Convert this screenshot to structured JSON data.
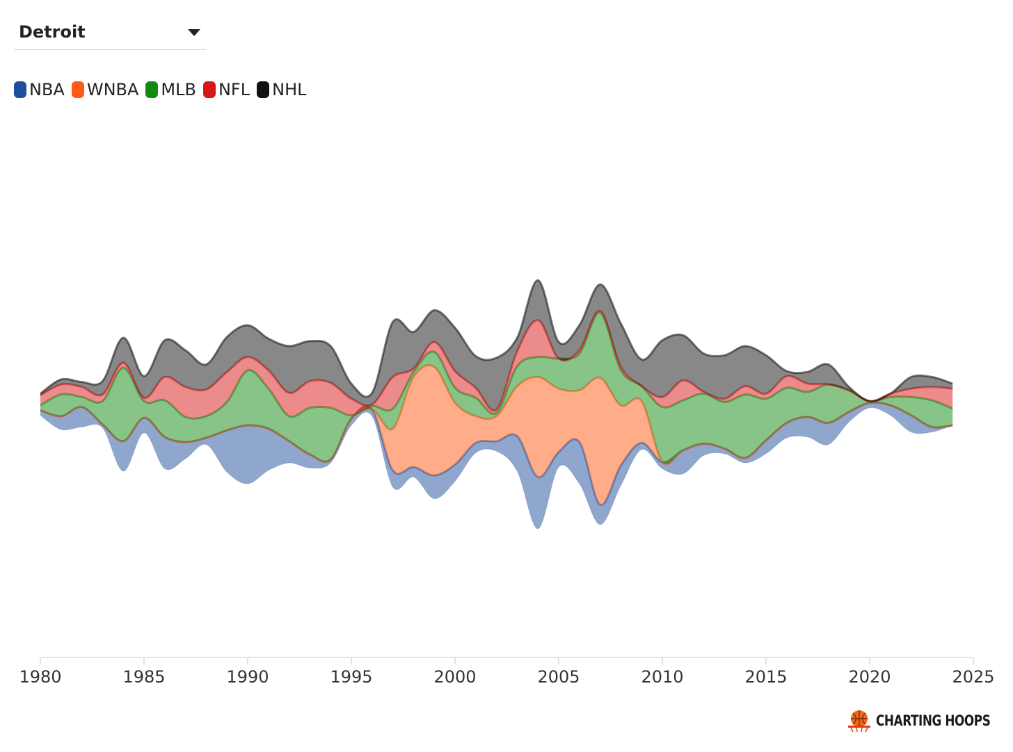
{
  "filter": {
    "selected_city": "Detroit"
  },
  "legend": [
    {
      "label": "NBA",
      "color": "#1f4e9c"
    },
    {
      "label": "WNBA",
      "color": "#ff5a14"
    },
    {
      "label": "MLB",
      "color": "#128a12"
    },
    {
      "label": "NFL",
      "color": "#d81818"
    },
    {
      "label": "NHL",
      "color": "#111111"
    }
  ],
  "brand": {
    "name": "CHARTING HOOPS"
  },
  "chart_data": {
    "type": "area",
    "subtype": "streamgraph",
    "x": [
      1980,
      1981,
      1982,
      1983,
      1984,
      1985,
      1986,
      1987,
      1988,
      1989,
      1990,
      1991,
      1992,
      1993,
      1994,
      1995,
      1996,
      1997,
      1998,
      1999,
      2000,
      2001,
      2002,
      2003,
      2004,
      2005,
      2006,
      2007,
      2008,
      2009,
      2010,
      2011,
      2012,
      2013,
      2014,
      2015,
      2016,
      2017,
      2018,
      2019,
      2020,
      2021,
      2022,
      2023,
      2024
    ],
    "x_ticks": [
      "1980",
      "1985",
      "1990",
      "1995",
      "2000",
      "2005",
      "2010",
      "2015",
      "2020",
      "2025"
    ],
    "xlim": [
      1980,
      2025
    ],
    "series": [
      {
        "name": "NBA",
        "color": "#1f4e9c",
        "values": [
          0.3,
          0.8,
          1.2,
          0.2,
          1.8,
          0.9,
          1.9,
          1.0,
          0.4,
          2.5,
          3.5,
          2.5,
          1.3,
          0.8,
          0.2,
          0.4,
          0.4,
          1.0,
          0.6,
          1.4,
          1.0,
          0.6,
          0.6,
          2.1,
          3.1,
          0.9,
          2.5,
          1.2,
          1.2,
          0.4,
          0.4,
          1.4,
          0.7,
          0.3,
          0.3,
          0.8,
          0.9,
          1.2,
          1.3,
          0.6,
          0.3,
          0.6,
          1.0,
          0.3,
          0.0
        ]
      },
      {
        "name": "WNBA",
        "color": "#ff5a14",
        "values": [
          0.0,
          0.0,
          0.0,
          0.0,
          0.0,
          0.0,
          0.0,
          0.0,
          0.0,
          0.0,
          0.0,
          0.0,
          0.0,
          0.0,
          0.0,
          0.0,
          0.0,
          2.5,
          5.4,
          6.5,
          3.7,
          1.6,
          1.5,
          3.0,
          6.0,
          3.8,
          3.1,
          7.6,
          3.6,
          2.5,
          0.0,
          0.0,
          0.0,
          0.0,
          0.0,
          0.0,
          0.0,
          0.0,
          0.0,
          0.0,
          0.0,
          0.0,
          0.0,
          0.0,
          0.0
        ]
      },
      {
        "name": "MLB",
        "color": "#128a12",
        "values": [
          0.3,
          1.3,
          0.6,
          1.4,
          4.4,
          1.0,
          2.2,
          1.5,
          1.3,
          1.7,
          3.3,
          2.4,
          1.5,
          2.8,
          3.1,
          0.2,
          0.2,
          1.2,
          0.3,
          0.9,
          0.9,
          1.1,
          0.2,
          1.2,
          1.2,
          1.8,
          2.2,
          3.9,
          2.1,
          0.9,
          3.3,
          3.0,
          3.0,
          2.8,
          3.8,
          2.5,
          2.1,
          1.5,
          2.3,
          1.3,
          0.1,
          0.5,
          1.1,
          1.6,
          1.0
        ]
      },
      {
        "name": "NFL",
        "color": "#d81818",
        "values": [
          0.6,
          0.6,
          0.6,
          0.4,
          0.3,
          0.2,
          1.4,
          1.8,
          1.6,
          1.8,
          0.8,
          1.1,
          1.4,
          1.6,
          1.5,
          1.0,
          0.1,
          1.9,
          0.2,
          0.6,
          1.0,
          0.6,
          0.2,
          0.9,
          2.2,
          0.0,
          0.2,
          0.1,
          0.2,
          0.0,
          0.6,
          1.2,
          0.1,
          0.2,
          0.5,
          0.3,
          0.7,
          0.5,
          0.0,
          0.0,
          0.0,
          0.2,
          0.5,
          0.8,
          1.2
        ]
      },
      {
        "name": "NHL",
        "color": "#111111",
        "values": [
          0.1,
          0.3,
          0.3,
          0.8,
          1.5,
          1.3,
          2.2,
          2.2,
          1.5,
          2.1,
          1.9,
          1.9,
          2.8,
          2.4,
          2.2,
          0.9,
          0.7,
          3.3,
          2.2,
          1.9,
          2.6,
          1.9,
          3.1,
          0.8,
          2.4,
          1.0,
          1.5,
          1.6,
          2.6,
          1.6,
          3.4,
          2.7,
          2.3,
          2.6,
          2.4,
          2.3,
          0.3,
          0.7,
          1.2,
          0.2,
          0.0,
          0.0,
          0.7,
          0.6,
          0.3
        ]
      }
    ]
  }
}
